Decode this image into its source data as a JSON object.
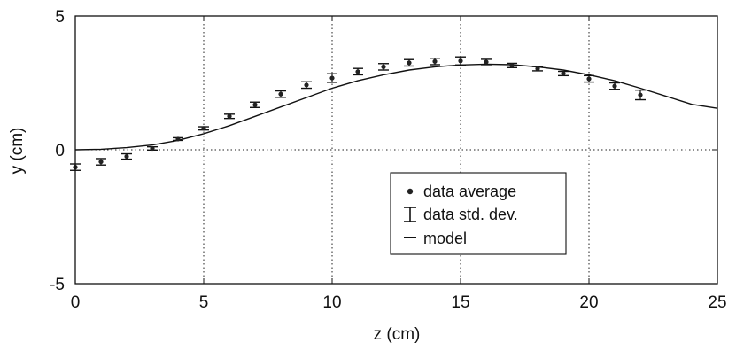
{
  "chart_data": {
    "type": "scatter",
    "title": "",
    "xlabel": "z (cm)",
    "ylabel": "y (cm)",
    "xlim": [
      0,
      25
    ],
    "ylim": [
      -5,
      5
    ],
    "x_ticks": [
      0,
      5,
      10,
      15,
      20,
      25
    ],
    "y_ticks": [
      -5,
      0,
      5
    ],
    "x_tick_labels": [
      "0",
      "5",
      "10",
      "15",
      "20",
      "25"
    ],
    "y_tick_labels": [
      "-5",
      "0",
      "5"
    ],
    "grid": "vertical dotted lines at x ticks, dotted line at y = 0",
    "legend_position": "lower-right",
    "series": [
      {
        "name": "data average",
        "kind": "points-with-errorbars",
        "x": [
          0,
          1,
          2,
          3,
          4,
          5,
          6,
          7,
          8,
          9,
          10,
          11,
          12,
          13,
          14,
          15,
          16,
          17,
          18,
          19,
          20,
          21,
          22
        ],
        "y": [
          -0.65,
          -0.45,
          -0.25,
          0.05,
          0.4,
          0.8,
          1.25,
          1.68,
          2.08,
          2.42,
          2.68,
          2.92,
          3.1,
          3.25,
          3.3,
          3.32,
          3.28,
          3.15,
          3.03,
          2.85,
          2.65,
          2.38,
          2.05
        ],
        "std_dev": [
          0.12,
          0.12,
          0.1,
          0.06,
          0.05,
          0.06,
          0.08,
          0.1,
          0.12,
          0.12,
          0.16,
          0.12,
          0.12,
          0.12,
          0.12,
          0.15,
          0.1,
          0.08,
          0.08,
          0.08,
          0.12,
          0.12,
          0.18
        ]
      },
      {
        "name": "model",
        "kind": "line",
        "x": [
          0,
          1,
          2,
          3,
          4,
          5,
          6,
          7,
          8,
          9,
          10,
          11,
          12,
          13,
          14,
          15,
          16,
          17,
          18,
          19,
          20,
          21,
          22,
          23,
          24,
          25
        ],
        "y": [
          0.0,
          0.02,
          0.08,
          0.18,
          0.35,
          0.6,
          0.9,
          1.25,
          1.6,
          1.95,
          2.3,
          2.58,
          2.8,
          2.98,
          3.1,
          3.17,
          3.2,
          3.18,
          3.1,
          2.98,
          2.8,
          2.58,
          2.3,
          2.0,
          1.7,
          1.55
        ]
      }
    ],
    "legend": [
      "data average",
      "data std. dev.",
      "model"
    ]
  }
}
